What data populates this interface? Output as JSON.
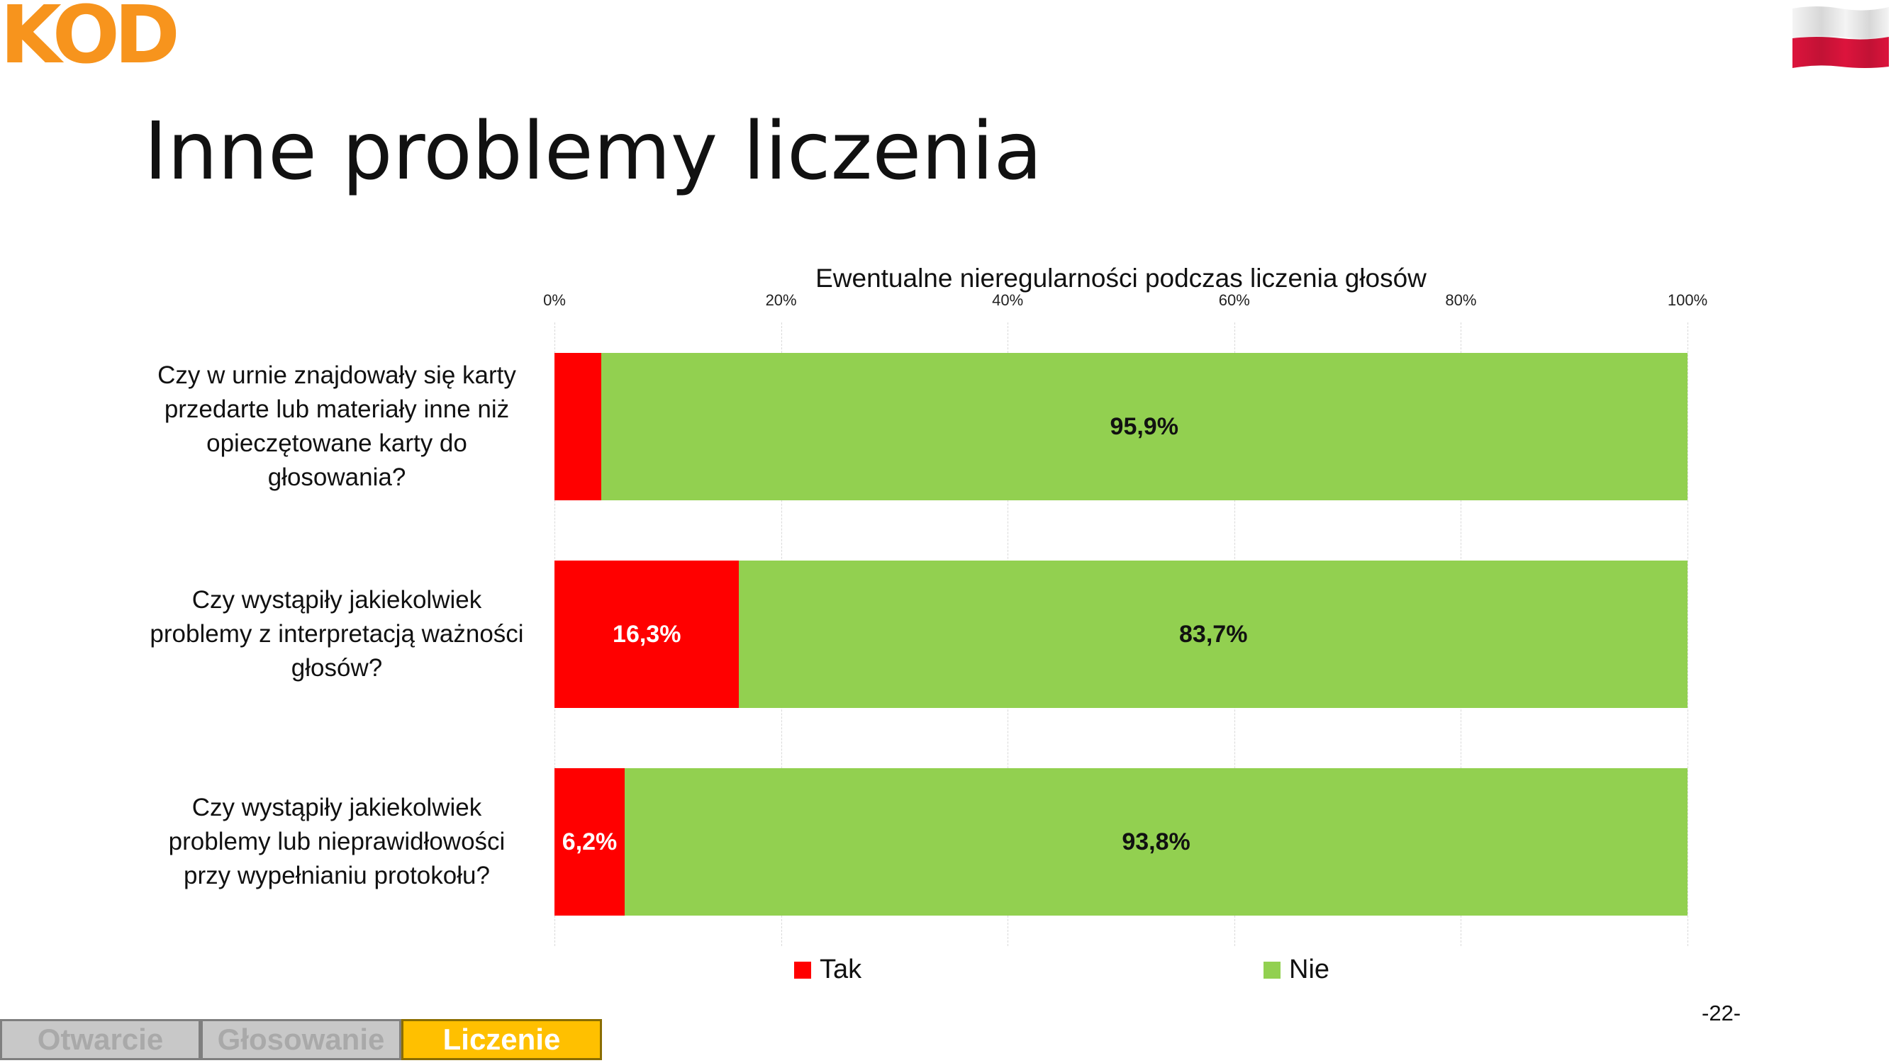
{
  "logo": {
    "text": "KOD",
    "color": "#F7941D"
  },
  "flag": {
    "top_color": "#ffffff",
    "bottom_color": "#DC143C"
  },
  "slide_title": "Inne problemy liczenia",
  "page_number": "-22-",
  "nav_tabs": [
    {
      "label": "Otwarcie",
      "active": false
    },
    {
      "label": "Głosowanie",
      "active": false
    },
    {
      "label": "Liczenie",
      "active": true
    }
  ],
  "colors": {
    "tak": "#FF0000",
    "nie": "#92D050",
    "nav_active": "#FFC000",
    "nav_inactive": "#C8C8C8"
  },
  "chart_data": {
    "type": "bar",
    "orientation": "horizontal",
    "stacked": "percent",
    "title": "Ewentualne nieregularności podczas liczenia głosów",
    "categories": [
      "Czy w urnie znajdowały się karty\nprzedarte lub materiały inne niż\nopieczętowane karty do\ngłosowania?",
      "Czy wystąpiły jakiekolwiek\nproblemy z interpretacją ważności\ngłosów?",
      "Czy wystąpiły jakiekolwiek\nproblemy lub nieprawidłowości\nprzy wypełnianiu protokołu?"
    ],
    "series": [
      {
        "name": "Tak",
        "values": [
          4.1,
          16.3,
          6.2
        ],
        "labels": [
          "",
          "16,3%",
          "6,2%"
        ],
        "color": "#FF0000",
        "label_color": "#ffffff"
      },
      {
        "name": "Nie",
        "values": [
          95.9,
          83.7,
          93.8
        ],
        "labels": [
          "95,9%",
          "83,7%",
          "93,8%"
        ],
        "color": "#92D050",
        "label_color": "#111111"
      }
    ],
    "x_ticks": [
      "0%",
      "20%",
      "40%",
      "60%",
      "80%",
      "100%"
    ],
    "xlim": [
      0,
      100
    ],
    "axis_position": "top",
    "grid": true,
    "legend_position": "bottom"
  }
}
